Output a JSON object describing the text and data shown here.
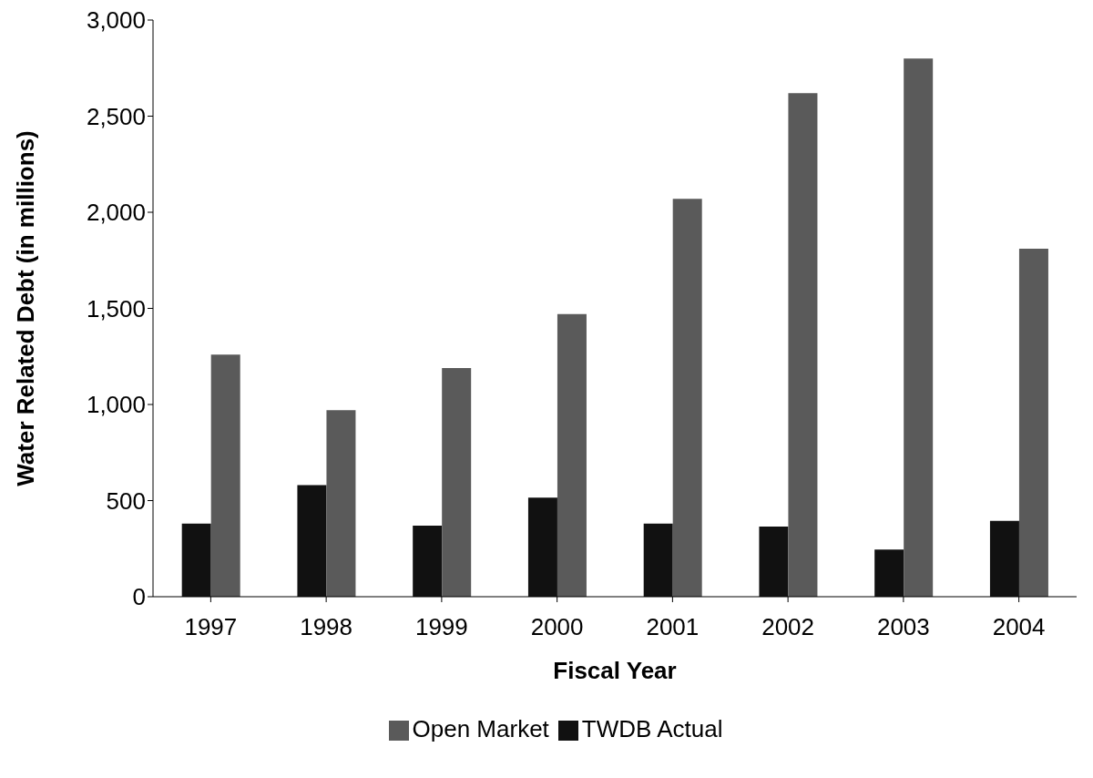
{
  "chart_data": {
    "type": "bar",
    "xlabel": "Fiscal Year",
    "ylabel": "Water Related Debt (in millions)",
    "categories": [
      "1997",
      "1998",
      "1999",
      "2000",
      "2001",
      "2002",
      "2003",
      "2004"
    ],
    "series": [
      {
        "name": "TWDB Actual",
        "color": "#111111",
        "values": [
          380,
          580,
          370,
          515,
          380,
          365,
          245,
          395
        ]
      },
      {
        "name": "Open Market",
        "color": "#5a5a5a",
        "values": [
          1260,
          970,
          1190,
          1470,
          2070,
          2620,
          2800,
          1810
        ]
      }
    ],
    "ylim": [
      0,
      3000
    ],
    "yticks": [
      {
        "value": 0,
        "label": "0"
      },
      {
        "value": 500,
        "label": "500"
      },
      {
        "value": 1000,
        "label": "1,000"
      },
      {
        "value": 1500,
        "label": "1,500"
      },
      {
        "value": 2000,
        "label": "2,000"
      },
      {
        "value": 2500,
        "label": "2,500"
      },
      {
        "value": 3000,
        "label": "3,000"
      }
    ],
    "grid": false,
    "legend": "bottom"
  }
}
